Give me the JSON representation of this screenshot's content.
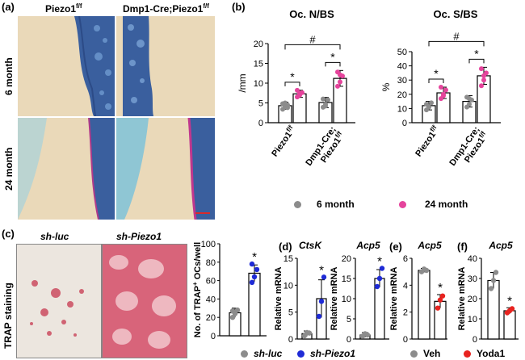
{
  "panels": {
    "a": {
      "letter": "(a)",
      "col1": "Piezo1",
      "col1_sup": "f/f",
      "col2": "Dmp1-Cre;Piezo1",
      "col2_sup": "f/f",
      "row1": "6 month",
      "row2": "24 month"
    },
    "b": {
      "letter": "(b)",
      "legend": {
        "series1": "6 month",
        "series2": "24 month"
      }
    },
    "c": {
      "letter": "(c)",
      "col1": "sh-luc",
      "col2": "sh-Piezo1",
      "side_label": "TRAP staining",
      "legend": {
        "series1": "sh-luc",
        "series2": "sh-Piezo1"
      }
    },
    "d": {
      "letter": "(d)"
    },
    "e": {
      "letter": "(e)",
      "legend": {
        "series1": "Veh",
        "series2": "Yoda1"
      }
    },
    "f": {
      "letter": "(f)"
    }
  },
  "colors": {
    "grey": "#8c8c8c",
    "pink": "#e5449c",
    "blue": "#1f2bd6",
    "red": "#e8231f",
    "tissue_blue": "#3a5f9e",
    "bone_bg": "#ead9b9",
    "cartilage": "#8fc6d4",
    "trap_red": "#d8647a",
    "scale_bar": "#d92a2a"
  },
  "chart_data": [
    {
      "id": "b1",
      "type": "bar",
      "title": "Oc. N/BS",
      "ylabel": "/mm",
      "ylim": [
        0,
        20
      ],
      "yticks": [
        0,
        5,
        10,
        15,
        20
      ],
      "categories": [
        {
          "line1": "Piezo1",
          "sup": "f/f",
          "line2": ""
        },
        {
          "line1": "Dmp1-Cre;",
          "sup": "f/f",
          "line2": "Piezo1"
        }
      ],
      "series": [
        {
          "name": "6 month",
          "color": "grey",
          "values": [
            4.3,
            5.1
          ],
          "error": [
            0.9,
            1.3
          ],
          "points": [
            [
              3.4,
              4.0,
              4.5,
              4.8,
              5.0,
              3.8
            ],
            [
              3.9,
              4.6,
              5.8,
              6.0,
              4.2
            ]
          ]
        },
        {
          "name": "24 month",
          "color": "pink",
          "values": [
            7.3,
            11.2
          ],
          "error": [
            0.9,
            2.0
          ],
          "points": [
            [
              6.5,
              7.0,
              7.6,
              8.2,
              7.4
            ],
            [
              9.2,
              10.3,
              11.8,
              12.8,
              12.1
            ]
          ]
        }
      ],
      "annotations": {
        "within": "*",
        "between": "#"
      }
    },
    {
      "id": "b2",
      "type": "bar",
      "title": "Oc. S/BS",
      "ylabel": "%",
      "ylim": [
        0,
        50
      ],
      "yticks": [
        0,
        10,
        20,
        30,
        40,
        50
      ],
      "categories": [
        {
          "line1": "Piezo1",
          "sup": "f/f",
          "line2": ""
        },
        {
          "line1": "Dmp1-Cre;",
          "sup": "f/f",
          "line2": "Piezo1"
        }
      ],
      "series": [
        {
          "name": "6 month",
          "color": "grey",
          "values": [
            12,
            15
          ],
          "error": [
            3,
            4
          ],
          "points": [
            [
              9,
              11,
              14,
              13
            ],
            [
              11,
              13,
              16,
              18,
              17
            ]
          ]
        },
        {
          "name": "24 month",
          "color": "pink",
          "values": [
            21,
            33
          ],
          "error": [
            4,
            6
          ],
          "points": [
            [
              17,
              20,
              23,
              25,
              19
            ],
            [
              26,
              30,
              35,
              38,
              33
            ]
          ]
        }
      ],
      "annotations": {
        "within": "*",
        "between": "#"
      }
    },
    {
      "id": "c",
      "type": "bar",
      "title": "",
      "ylabel": "No. of TRAP",
      "ylabel_sup": "+",
      "ylabel_tail": " OCs/well",
      "ylim": [
        0,
        100
      ],
      "yticks": [
        0,
        20,
        40,
        60,
        80,
        100
      ],
      "categories": [
        "sh-luc",
        "sh-Piezo1"
      ],
      "colors": [
        "grey",
        "blue"
      ],
      "values": [
        25,
        68
      ],
      "error": [
        5,
        9
      ],
      "points": [
        [
          20,
          24,
          28,
          27
        ],
        [
          58,
          64,
          72,
          78
        ]
      ],
      "annotation": "*"
    },
    {
      "id": "d1",
      "type": "bar",
      "title": "CtsK",
      "ylabel": "Relative mRNA",
      "ylim": [
        0,
        15
      ],
      "yticks": [
        0,
        5,
        10,
        15
      ],
      "categories": [
        "sh-luc",
        "sh-Piezo1"
      ],
      "colors": [
        "grey",
        "blue"
      ],
      "values": [
        1.0,
        7.5
      ],
      "error": [
        0.5,
        3.5
      ],
      "points": [
        [
          0.6,
          1.2,
          1.1
        ],
        [
          4.2,
          7.0,
          11.5
        ]
      ],
      "annotation": "*"
    },
    {
      "id": "d2",
      "type": "bar",
      "title": "Acp5",
      "ylabel": "Relative mRNA",
      "ylim": [
        0,
        20
      ],
      "yticks": [
        0,
        5,
        10,
        15,
        20
      ],
      "categories": [
        "sh-luc",
        "sh-Piezo1"
      ],
      "colors": [
        "grey",
        "blue"
      ],
      "values": [
        1.0,
        15
      ],
      "error": [
        0.6,
        2.2
      ],
      "points": [
        [
          0.7,
          1.3,
          1.0
        ],
        [
          13,
          15,
          17.5
        ]
      ],
      "annotation": "*"
    },
    {
      "id": "e",
      "type": "bar",
      "title": "Acp5",
      "ylabel": "Relative mRNA",
      "ylim": [
        0,
        6
      ],
      "yticks": [
        0,
        2,
        4,
        6
      ],
      "categories": [
        "Veh",
        "Yoda1"
      ],
      "colors": [
        "grey",
        "red"
      ],
      "values": [
        5.1,
        2.8
      ],
      "error": [
        0.15,
        0.5
      ],
      "points": [
        [
          5.0,
          5.2,
          5.1
        ],
        [
          2.3,
          2.9,
          3.2
        ]
      ],
      "annotation": "*"
    },
    {
      "id": "f",
      "type": "bar",
      "title": "Acp5",
      "ylabel": "Relative mRNA",
      "ylim": [
        0,
        40
      ],
      "yticks": [
        0,
        10,
        20,
        30,
        40
      ],
      "categories": [
        "Veh",
        "Yoda1"
      ],
      "colors": [
        "grey",
        "red"
      ],
      "values": [
        29,
        14
      ],
      "error": [
        4,
        1.5
      ],
      "points": [
        [
          25,
          29,
          33
        ],
        [
          13,
          14,
          15
        ]
      ],
      "annotation": "*"
    }
  ]
}
